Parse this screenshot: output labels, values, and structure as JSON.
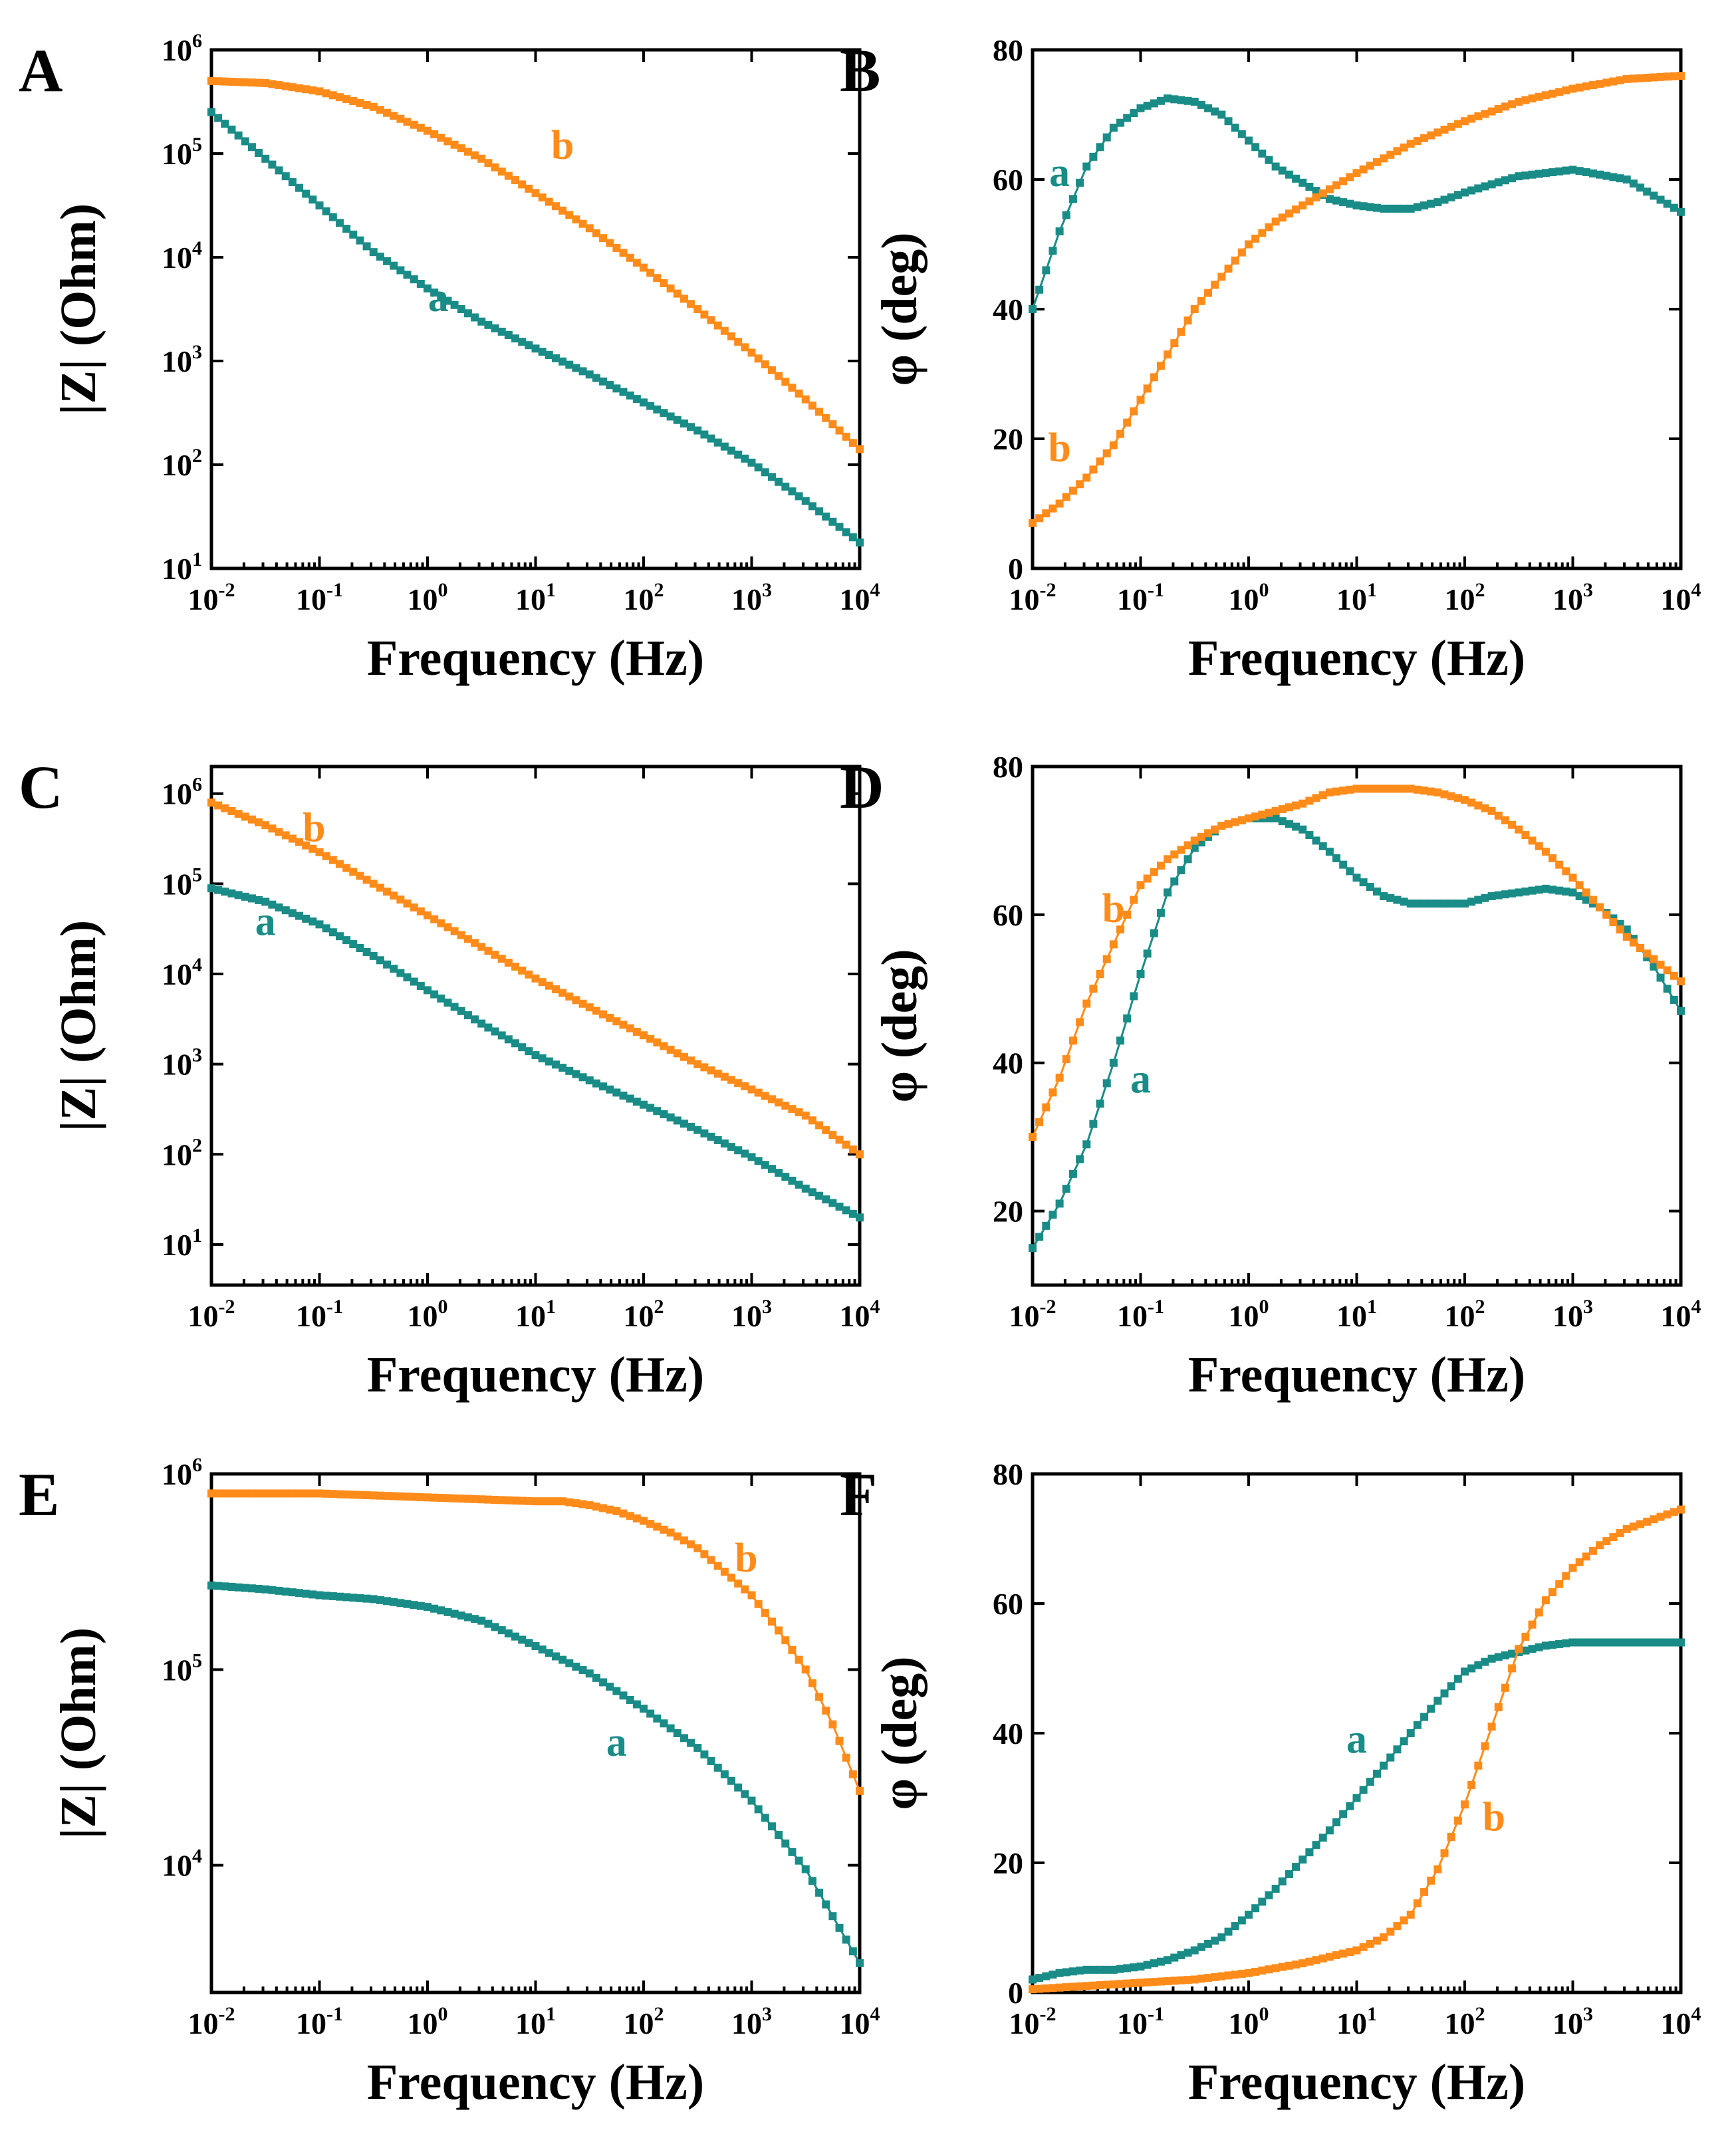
{
  "colors": {
    "a": "#1a8c87",
    "b": "#ff8c1a",
    "axis": "#000000"
  },
  "chart_data": [
    {
      "panel": "A",
      "type": "line",
      "xlabel": "Frequency (Hz)",
      "ylabel": "|Z| (Ohm)",
      "xscale": "log",
      "yscale": "log",
      "xlim": [
        -2,
        4
      ],
      "ylim": [
        1,
        6
      ],
      "xticks": [
        {
          "base": "10",
          "exp": "-2"
        },
        {
          "base": "10",
          "exp": "-1"
        },
        {
          "base": "10",
          "exp": "0"
        },
        {
          "base": "10",
          "exp": "1"
        },
        {
          "base": "10",
          "exp": "2"
        },
        {
          "base": "10",
          "exp": "3"
        },
        {
          "base": "10",
          "exp": "4"
        }
      ],
      "yticks": [
        {
          "base": "10",
          "exp": "1"
        },
        {
          "base": "10",
          "exp": "2"
        },
        {
          "base": "10",
          "exp": "3"
        },
        {
          "base": "10",
          "exp": "4"
        },
        {
          "base": "10",
          "exp": "5"
        },
        {
          "base": "10",
          "exp": "6"
        }
      ],
      "series": [
        {
          "name": "a",
          "label": "a",
          "label_at": [
            0.1,
            3.48
          ],
          "x": [
            -2,
            -1.5,
            -1,
            -0.5,
            0,
            0.5,
            1,
            1.5,
            2,
            2.5,
            3,
            3.5,
            4
          ],
          "y": [
            5.4,
            4.95,
            4.5,
            4.05,
            3.7,
            3.38,
            3.12,
            2.87,
            2.6,
            2.33,
            2.02,
            1.65,
            1.25
          ]
        },
        {
          "name": "b",
          "label": "b",
          "label_at": [
            1.25,
            4.95
          ],
          "x": [
            -2,
            -1.5,
            -1,
            -0.5,
            0,
            0.5,
            1,
            1.5,
            2,
            2.5,
            3,
            3.5,
            4
          ],
          "y": [
            5.7,
            5.68,
            5.6,
            5.45,
            5.22,
            4.95,
            4.62,
            4.28,
            3.9,
            3.5,
            3.08,
            2.63,
            2.15
          ]
        }
      ]
    },
    {
      "panel": "B",
      "type": "line",
      "xlabel": "Frequency (Hz)",
      "ylabel": "φ (deg)",
      "xscale": "log",
      "yscale": "linear",
      "xlim": [
        -2,
        4
      ],
      "ylim": [
        0,
        80
      ],
      "xticks": [
        {
          "base": "10",
          "exp": "-2"
        },
        {
          "base": "10",
          "exp": "-1"
        },
        {
          "base": "10",
          "exp": "0"
        },
        {
          "base": "10",
          "exp": "1"
        },
        {
          "base": "10",
          "exp": "2"
        },
        {
          "base": "10",
          "exp": "3"
        },
        {
          "base": "10",
          "exp": "4"
        }
      ],
      "yticks": [
        {
          "base": "0",
          "exp": ""
        },
        {
          "base": "20",
          "exp": ""
        },
        {
          "base": "40",
          "exp": ""
        },
        {
          "base": "60",
          "exp": ""
        },
        {
          "base": "80",
          "exp": ""
        }
      ],
      "series": [
        {
          "name": "a",
          "label": "a",
          "label_at": [
            -1.75,
            59
          ],
          "x": [
            -2,
            -1.75,
            -1.5,
            -1.25,
            -1,
            -0.75,
            -0.5,
            -0.25,
            0,
            0.25,
            0.5,
            0.75,
            1,
            1.25,
            1.5,
            1.75,
            2,
            2.5,
            3,
            3.5,
            4
          ],
          "y": [
            40,
            52,
            62,
            68,
            71,
            72.5,
            72,
            70,
            66,
            62,
            59.5,
            57,
            56,
            55.5,
            55.5,
            56.5,
            58,
            60.5,
            61.5,
            60,
            55
          ]
        },
        {
          "name": "b",
          "label": "b",
          "label_at": [
            -1.75,
            16.5
          ],
          "x": [
            -2,
            -1.75,
            -1.5,
            -1.25,
            -1,
            -0.75,
            -0.5,
            -0.25,
            0,
            0.25,
            0.5,
            0.75,
            1,
            1.5,
            2,
            2.5,
            3,
            3.5,
            4
          ],
          "y": [
            7,
            10,
            14,
            19,
            26,
            33,
            40,
            45,
            50,
            53.5,
            56,
            58.5,
            61,
            65.5,
            69,
            72,
            74,
            75.5,
            76
          ]
        }
      ]
    },
    {
      "panel": "C",
      "type": "line",
      "xlabel": "Frequency (Hz)",
      "ylabel": "|Z| (Ohm)",
      "xscale": "log",
      "yscale": "log",
      "xlim": [
        -2,
        4
      ],
      "ylim": [
        0.55,
        6.3
      ],
      "xticks": [
        {
          "base": "10",
          "exp": "-2"
        },
        {
          "base": "10",
          "exp": "-1"
        },
        {
          "base": "10",
          "exp": "0"
        },
        {
          "base": "10",
          "exp": "1"
        },
        {
          "base": "10",
          "exp": "2"
        },
        {
          "base": "10",
          "exp": "3"
        },
        {
          "base": "10",
          "exp": "4"
        }
      ],
      "yticks": [
        {
          "base": "10",
          "exp": "1"
        },
        {
          "base": "10",
          "exp": "2"
        },
        {
          "base": "10",
          "exp": "3"
        },
        {
          "base": "10",
          "exp": "4"
        },
        {
          "base": "10",
          "exp": "5"
        },
        {
          "base": "10",
          "exp": "6"
        }
      ],
      "series": [
        {
          "name": "a",
          "label": "a",
          "label_at": [
            -1.5,
            4.43
          ],
          "x": [
            -2,
            -1.5,
            -1,
            -0.5,
            0,
            0.5,
            1,
            1.5,
            2,
            2.5,
            3,
            3.5,
            4
          ],
          "y": [
            4.95,
            4.8,
            4.55,
            4.2,
            3.82,
            3.45,
            3.1,
            2.82,
            2.55,
            2.27,
            1.97,
            1.62,
            1.3
          ]
        },
        {
          "name": "b",
          "label": "b",
          "label_at": [
            -1.05,
            5.47
          ],
          "x": [
            -2,
            -1.5,
            -1,
            -0.5,
            0,
            0.5,
            1,
            1.5,
            2,
            2.5,
            3,
            3.5,
            4
          ],
          "y": [
            5.9,
            5.65,
            5.35,
            5.0,
            4.65,
            4.3,
            3.95,
            3.63,
            3.32,
            3.0,
            2.72,
            2.43,
            2.0
          ]
        }
      ]
    },
    {
      "panel": "D",
      "type": "line",
      "xlabel": "Frequency (Hz)",
      "ylabel": "φ (deg)",
      "xscale": "log",
      "yscale": "linear",
      "xlim": [
        -2,
        4
      ],
      "ylim": [
        10,
        80
      ],
      "xticks": [
        {
          "base": "10",
          "exp": "-2"
        },
        {
          "base": "10",
          "exp": "-1"
        },
        {
          "base": "10",
          "exp": "0"
        },
        {
          "base": "10",
          "exp": "1"
        },
        {
          "base": "10",
          "exp": "2"
        },
        {
          "base": "10",
          "exp": "3"
        },
        {
          "base": "10",
          "exp": "4"
        }
      ],
      "yticks": [
        {
          "base": "20",
          "exp": ""
        },
        {
          "base": "40",
          "exp": ""
        },
        {
          "base": "60",
          "exp": ""
        },
        {
          "base": "80",
          "exp": ""
        }
      ],
      "series": [
        {
          "name": "a",
          "label": "a",
          "label_at": [
            -1.0,
            36
          ],
          "x": [
            -2,
            -1.75,
            -1.5,
            -1.25,
            -1,
            -0.75,
            -0.5,
            -0.25,
            0,
            0.25,
            0.5,
            0.75,
            1,
            1.25,
            1.5,
            1.75,
            2,
            2.25,
            2.5,
            2.75,
            3,
            3.25,
            3.5,
            3.75,
            4
          ],
          "y": [
            15,
            21,
            29,
            40,
            52,
            63,
            69,
            72,
            73,
            73,
            71.5,
            68.5,
            65,
            62.5,
            61.5,
            61.5,
            61.5,
            62.5,
            63,
            63.5,
            63,
            61,
            58,
            53,
            47
          ]
        },
        {
          "name": "b",
          "label": "b",
          "label_at": [
            -1.25,
            59
          ],
          "x": [
            -2,
            -1.75,
            -1.5,
            -1.25,
            -1,
            -0.75,
            -0.5,
            -0.25,
            0,
            0.25,
            0.5,
            0.75,
            1,
            1.25,
            1.5,
            1.75,
            2,
            2.25,
            2.5,
            2.75,
            3,
            3.25,
            3.5,
            3.75,
            4
          ],
          "y": [
            30,
            38,
            48,
            56,
            64,
            67.5,
            70,
            72,
            73,
            74,
            75,
            76.5,
            77,
            77,
            77,
            76.5,
            75.5,
            74,
            71.5,
            68.5,
            65,
            61,
            57,
            54,
            51
          ]
        }
      ]
    },
    {
      "panel": "E",
      "type": "line",
      "xlabel": "Frequency (Hz)",
      "ylabel": "|Z| (Ohm)",
      "xscale": "log",
      "yscale": "log",
      "xlim": [
        -2,
        4
      ],
      "ylim": [
        3.35,
        6.0
      ],
      "xticks": [
        {
          "base": "10",
          "exp": "-2"
        },
        {
          "base": "10",
          "exp": "-1"
        },
        {
          "base": "10",
          "exp": "0"
        },
        {
          "base": "10",
          "exp": "1"
        },
        {
          "base": "10",
          "exp": "2"
        },
        {
          "base": "10",
          "exp": "3"
        },
        {
          "base": "10",
          "exp": "4"
        }
      ],
      "yticks": [
        {
          "base": "10",
          "exp": "4"
        },
        {
          "base": "10",
          "exp": "5"
        },
        {
          "base": "10",
          "exp": "6"
        }
      ],
      "series": [
        {
          "name": "a",
          "label": "a",
          "label_at": [
            1.75,
            4.56
          ],
          "x": [
            -2,
            -1.5,
            -1,
            -0.5,
            0,
            0.5,
            1,
            1.5,
            2,
            2.5,
            3,
            3.5,
            4
          ],
          "y": [
            5.43,
            5.41,
            5.38,
            5.36,
            5.32,
            5.25,
            5.12,
            4.98,
            4.8,
            4.6,
            4.33,
            3.98,
            3.5
          ]
        },
        {
          "name": "b",
          "label": "b",
          "label_at": [
            2.95,
            5.5
          ],
          "x": [
            -2,
            -1.5,
            -1,
            -0.5,
            0,
            0.5,
            1,
            1.25,
            1.5,
            1.75,
            2,
            2.25,
            2.5,
            2.75,
            3,
            3.25,
            3.5,
            3.75,
            4
          ],
          "y": [
            5.9,
            5.9,
            5.9,
            5.89,
            5.88,
            5.87,
            5.86,
            5.86,
            5.84,
            5.81,
            5.76,
            5.7,
            5.62,
            5.5,
            5.38,
            5.2,
            5.0,
            4.72,
            4.38
          ]
        }
      ]
    },
    {
      "panel": "F",
      "type": "line",
      "xlabel": "Frequency (Hz)",
      "ylabel": "φ (deg)",
      "xscale": "log",
      "yscale": "linear",
      "xlim": [
        -2,
        4
      ],
      "ylim": [
        0,
        80
      ],
      "xticks": [
        {
          "base": "10",
          "exp": "-2"
        },
        {
          "base": "10",
          "exp": "-1"
        },
        {
          "base": "10",
          "exp": "0"
        },
        {
          "base": "10",
          "exp": "1"
        },
        {
          "base": "10",
          "exp": "2"
        },
        {
          "base": "10",
          "exp": "3"
        },
        {
          "base": "10",
          "exp": "4"
        }
      ],
      "yticks": [
        {
          "base": "0",
          "exp": ""
        },
        {
          "base": "20",
          "exp": ""
        },
        {
          "base": "40",
          "exp": ""
        },
        {
          "base": "60",
          "exp": ""
        },
        {
          "base": "80",
          "exp": ""
        }
      ],
      "series": [
        {
          "name": "a",
          "label": "a",
          "label_at": [
            1.0,
            37
          ],
          "x": [
            -2,
            -1.75,
            -1.5,
            -1.25,
            -1,
            -0.75,
            -0.5,
            -0.25,
            0,
            0.25,
            0.5,
            0.75,
            1,
            1.25,
            1.5,
            1.75,
            2,
            2.25,
            2.5,
            2.75,
            3,
            3.5,
            4
          ],
          "y": [
            2,
            3,
            3.5,
            3.5,
            4,
            5,
            6.5,
            8.5,
            12,
            16,
            20.5,
            25,
            30,
            35,
            40,
            45,
            49.5,
            51.5,
            52.5,
            53.5,
            54,
            54,
            54
          ]
        },
        {
          "name": "b",
          "label": "b",
          "label_at": [
            2.27,
            25
          ],
          "x": [
            -2,
            -1.5,
            -1,
            -0.5,
            0,
            0.5,
            1,
            1.25,
            1.5,
            1.75,
            2,
            2.25,
            2.5,
            2.75,
            3,
            3.25,
            3.5,
            3.75,
            4
          ],
          "y": [
            0.5,
            1,
            1.5,
            2,
            3,
            4.5,
            6.5,
            8.5,
            12,
            19,
            29,
            41,
            53,
            60.5,
            65.5,
            69,
            71.5,
            73,
            74.5
          ]
        }
      ]
    }
  ]
}
